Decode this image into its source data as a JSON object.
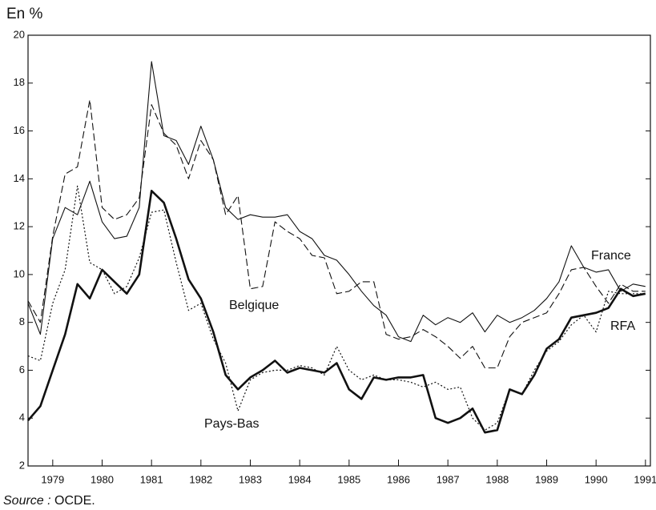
{
  "chart_data": {
    "type": "line",
    "y_label": "En %",
    "source": {
      "label": "Source :",
      "text": "OCDE."
    },
    "x": [
      1978.5,
      1978.75,
      1979,
      1979.25,
      1979.5,
      1979.75,
      1980,
      1980.25,
      1980.5,
      1980.75,
      1981,
      1981.25,
      1981.5,
      1981.75,
      1982,
      1982.25,
      1982.5,
      1982.75,
      1983,
      1983.25,
      1983.5,
      1983.75,
      1984,
      1984.25,
      1984.5,
      1984.75,
      1985,
      1985.25,
      1985.5,
      1985.75,
      1986,
      1986.25,
      1986.5,
      1986.75,
      1987,
      1987.25,
      1987.5,
      1987.75,
      1988,
      1988.25,
      1988.5,
      1988.75,
      1989,
      1989.25,
      1989.5,
      1989.75,
      1990,
      1990.25,
      1990.5,
      1990.75,
      1991
    ],
    "series": [
      {
        "name": "France",
        "color": "#111111",
        "line_style": "solid",
        "line_width": 1.1,
        "values": [
          8.8,
          7.5,
          11.5,
          12.8,
          12.5,
          13.9,
          12.2,
          11.5,
          11.6,
          12.8,
          18.9,
          15.8,
          15.6,
          14.6,
          16.2,
          14.8,
          12.8,
          12.3,
          12.5,
          12.4,
          12.4,
          12.5,
          11.8,
          11.5,
          10.8,
          10.6,
          10.0,
          9.3,
          8.7,
          8.3,
          7.4,
          7.2,
          8.3,
          7.9,
          8.2,
          8.0,
          8.4,
          7.6,
          8.3,
          8.0,
          8.2,
          8.5,
          9.0,
          9.7,
          11.2,
          10.3,
          10.1,
          10.2,
          9.3,
          9.6,
          9.5
        ]
      },
      {
        "name": "Belgique",
        "color": "#111111",
        "line_style": "dashed",
        "line_width": 1.1,
        "values": [
          8.9,
          8.0,
          11.6,
          14.2,
          14.5,
          17.3,
          12.8,
          12.3,
          12.5,
          13.2,
          17.1,
          15.9,
          15.4,
          14.0,
          15.6,
          14.8,
          12.5,
          13.3,
          9.4,
          9.5,
          12.2,
          11.8,
          11.5,
          10.8,
          10.7,
          9.2,
          9.3,
          9.7,
          9.7,
          7.5,
          7.3,
          7.4,
          7.7,
          7.4,
          7.0,
          6.5,
          7.0,
          6.1,
          6.1,
          7.4,
          8.0,
          8.2,
          8.4,
          9.2,
          10.2,
          10.3,
          9.5,
          8.8,
          9.6,
          9.3,
          9.3
        ]
      },
      {
        "name": "Pays-Bas",
        "color": "#111111",
        "line_style": "dotted",
        "line_width": 1.2,
        "values": [
          6.6,
          6.4,
          8.8,
          10.2,
          13.7,
          10.5,
          10.2,
          9.2,
          9.5,
          10.7,
          12.6,
          12.7,
          10.5,
          8.5,
          8.8,
          7.3,
          6.3,
          4.3,
          5.6,
          5.9,
          6.0,
          6.0,
          6.2,
          6.1,
          5.8,
          7.0,
          6.0,
          5.6,
          5.8,
          5.6,
          5.6,
          5.5,
          5.3,
          5.5,
          5.2,
          5.3,
          4.0,
          3.5,
          3.8,
          5.2,
          5.0,
          6.0,
          6.8,
          7.2,
          7.9,
          8.3,
          7.6,
          9.3,
          9.2,
          9.2,
          9.2
        ]
      },
      {
        "name": "RFA",
        "color": "#111111",
        "line_style": "solid",
        "line_width": 2.6,
        "values": [
          3.9,
          4.5,
          6.0,
          7.5,
          9.6,
          9.0,
          10.2,
          9.7,
          9.2,
          10.0,
          13.5,
          13.0,
          11.5,
          9.8,
          9.0,
          7.6,
          5.8,
          5.2,
          5.7,
          6.0,
          6.4,
          5.9,
          6.1,
          6.0,
          5.9,
          6.3,
          5.2,
          4.8,
          5.7,
          5.6,
          5.7,
          5.7,
          5.8,
          4.0,
          3.8,
          4.0,
          4.4,
          3.4,
          3.5,
          5.2,
          5.0,
          5.8,
          6.9,
          7.3,
          8.2,
          8.3,
          8.4,
          8.6,
          9.4,
          9.1,
          9.2
        ]
      }
    ],
    "xlim": [
      1978.5,
      1991.1
    ],
    "xticks": [
      1979,
      1980,
      1981,
      1982,
      1983,
      1984,
      1985,
      1986,
      1987,
      1988,
      1989,
      1990,
      1991
    ],
    "ylim": [
      2,
      20
    ],
    "yticks": [
      2,
      4,
      6,
      8,
      10,
      12,
      14,
      16,
      18,
      20
    ],
    "grid": false
  }
}
